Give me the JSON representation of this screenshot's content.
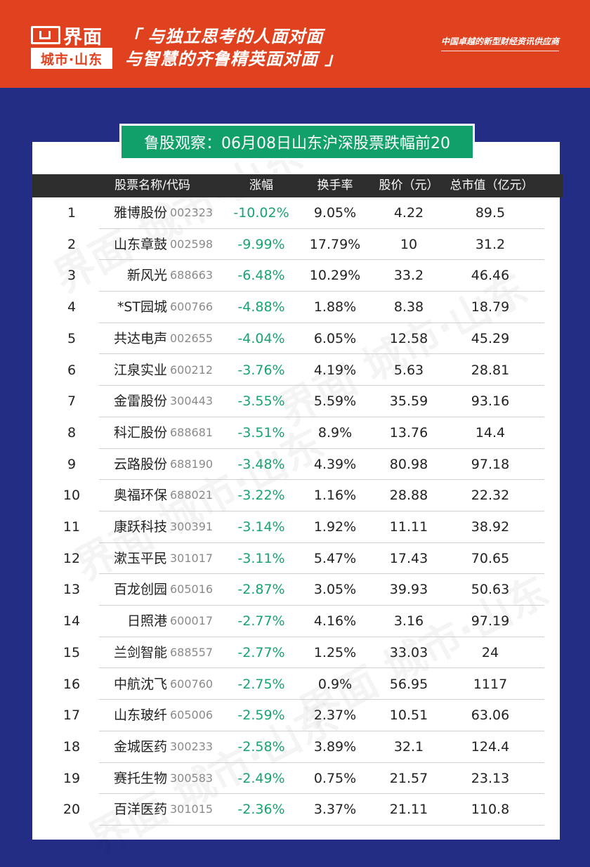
{
  "brand": {
    "name": "界面",
    "city": "城市·山东"
  },
  "slogan": {
    "line1": "「 与独立思考的人面对面",
    "line2": "与智慧的齐鲁精英面对面 」"
  },
  "tagline": "中国卓越的新型财经资讯供应商",
  "title": "鲁股观察：06月08日山东沪深股票跌幅前20",
  "watermark": "界面 城市·山东",
  "headers": {
    "name": "股票名称/代码",
    "change": "涨幅",
    "turnover": "换手率",
    "price": "股价（元）",
    "cap": "总市值（亿元）"
  },
  "rows": [
    {
      "rank": "1",
      "name": "雅博股份",
      "code": "002323",
      "change": "-10.02%",
      "turnover": "9.05%",
      "price": "4.22",
      "cap": "89.5"
    },
    {
      "rank": "2",
      "name": "山东章鼓",
      "code": "002598",
      "change": "-9.99%",
      "turnover": "17.79%",
      "price": "10",
      "cap": "31.2"
    },
    {
      "rank": "3",
      "name": "新风光",
      "code": "688663",
      "change": "-6.48%",
      "turnover": "10.29%",
      "price": "33.2",
      "cap": "46.46"
    },
    {
      "rank": "4",
      "name": "*ST园城",
      "code": "600766",
      "change": "-4.88%",
      "turnover": "1.88%",
      "price": "8.38",
      "cap": "18.79"
    },
    {
      "rank": "5",
      "name": "共达电声",
      "code": "002655",
      "change": "-4.04%",
      "turnover": "6.05%",
      "price": "12.58",
      "cap": "45.29"
    },
    {
      "rank": "6",
      "name": "江泉实业",
      "code": "600212",
      "change": "-3.76%",
      "turnover": "4.19%",
      "price": "5.63",
      "cap": "28.81"
    },
    {
      "rank": "7",
      "name": "金雷股份",
      "code": "300443",
      "change": "-3.55%",
      "turnover": "5.59%",
      "price": "35.59",
      "cap": "93.16"
    },
    {
      "rank": "8",
      "name": "科汇股份",
      "code": "688681",
      "change": "-3.51%",
      "turnover": "8.9%",
      "price": "13.76",
      "cap": "14.4"
    },
    {
      "rank": "9",
      "name": "云路股份",
      "code": "688190",
      "change": "-3.48%",
      "turnover": "4.39%",
      "price": "80.98",
      "cap": "97.18"
    },
    {
      "rank": "10",
      "name": "奥福环保",
      "code": "688021",
      "change": "-3.22%",
      "turnover": "1.16%",
      "price": "28.88",
      "cap": "22.32"
    },
    {
      "rank": "11",
      "name": "康跃科技",
      "code": "300391",
      "change": "-3.14%",
      "turnover": "1.92%",
      "price": "11.11",
      "cap": "38.92"
    },
    {
      "rank": "12",
      "name": "漱玉平民",
      "code": "301017",
      "change": "-3.11%",
      "turnover": "5.47%",
      "price": "17.43",
      "cap": "70.65"
    },
    {
      "rank": "13",
      "name": "百龙创园",
      "code": "605016",
      "change": "-2.87%",
      "turnover": "3.05%",
      "price": "39.93",
      "cap": "50.63"
    },
    {
      "rank": "14",
      "name": "日照港",
      "code": "600017",
      "change": "-2.77%",
      "turnover": "4.16%",
      "price": "3.16",
      "cap": "97.19"
    },
    {
      "rank": "15",
      "name": "兰剑智能",
      "code": "688557",
      "change": "-2.77%",
      "turnover": "1.25%",
      "price": "33.03",
      "cap": "24"
    },
    {
      "rank": "16",
      "name": "中航沈飞",
      "code": "600760",
      "change": "-2.75%",
      "turnover": "0.9%",
      "price": "56.95",
      "cap": "1117"
    },
    {
      "rank": "17",
      "name": "山东玻纤",
      "code": "605006",
      "change": "-2.59%",
      "turnover": "2.37%",
      "price": "10.51",
      "cap": "63.06"
    },
    {
      "rank": "18",
      "name": "金城医药",
      "code": "300233",
      "change": "-2.58%",
      "turnover": "3.89%",
      "price": "32.1",
      "cap": "124.4"
    },
    {
      "rank": "19",
      "name": "赛托生物",
      "code": "300583",
      "change": "-2.49%",
      "turnover": "0.75%",
      "price": "21.57",
      "cap": "23.13"
    },
    {
      "rank": "20",
      "name": "百洋医药",
      "code": "301015",
      "change": "-2.36%",
      "turnover": "3.37%",
      "price": "21.11",
      "cap": "110.8"
    }
  ]
}
